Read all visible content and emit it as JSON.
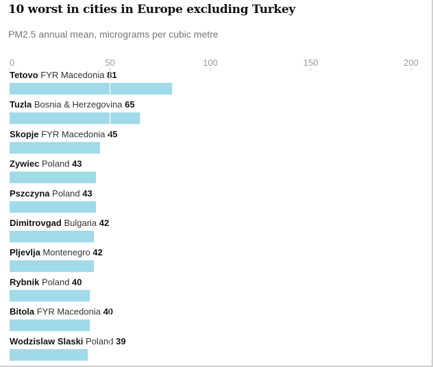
{
  "chart_data": {
    "type": "bar",
    "orientation": "horizontal",
    "title": "10 worst in cities in Europe excluding Turkey",
    "subtitle": "PM2.5 annual mean, micrograms per cubic metre",
    "xlim": [
      0,
      200
    ],
    "ticks": [
      0,
      50,
      100,
      150,
      200
    ],
    "tick_labels": [
      "0",
      "50",
      "100",
      "150",
      "200"
    ],
    "grid": true,
    "bar_color": "#a1dae8",
    "grid_color": "#ffffff",
    "categories": [
      {
        "city": "Tetovo",
        "country": "FYR Macedonia",
        "value": 81
      },
      {
        "city": "Tuzla",
        "country": "Bosnia & Herzegovina",
        "value": 65
      },
      {
        "city": "Skopje",
        "country": "FYR Macedonia",
        "value": 45
      },
      {
        "city": "Zywiec",
        "country": "Poland",
        "value": 43
      },
      {
        "city": "Pszczyna",
        "country": "Poland",
        "value": 43
      },
      {
        "city": "Dimitrovgad",
        "country": "Bulgaria",
        "value": 42
      },
      {
        "city": "Pljevlja",
        "country": "Montenegro",
        "value": 42
      },
      {
        "city": "Rybnik",
        "country": "Poland",
        "value": 40
      },
      {
        "city": "Bitola",
        "country": "FYR Macedonia",
        "value": 40
      },
      {
        "city": "Wodzislaw Slaski",
        "country": "Poland",
        "value": 39
      }
    ]
  }
}
